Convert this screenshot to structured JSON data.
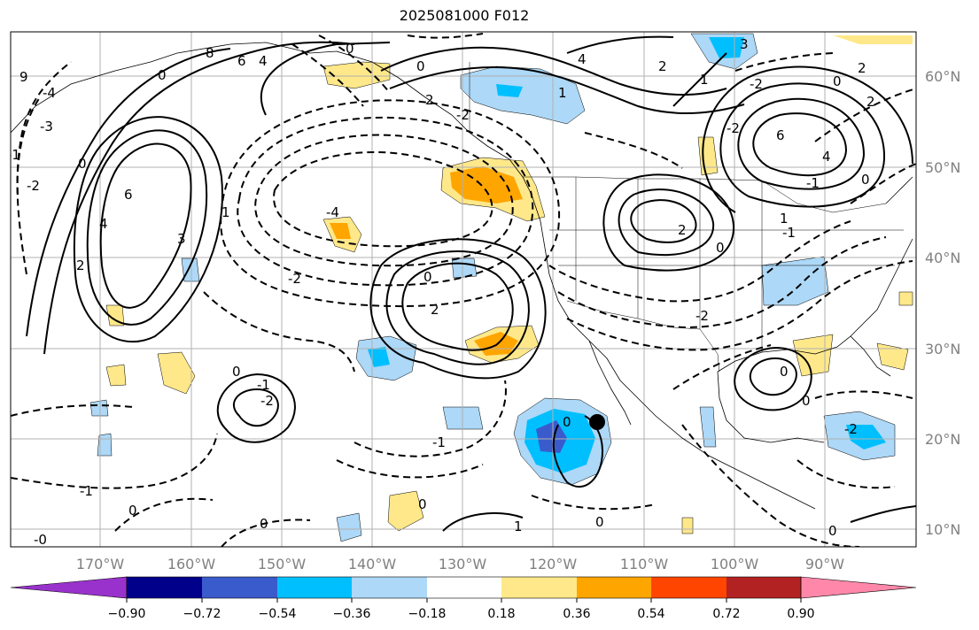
{
  "title": "2025081000 F012",
  "lat_labels": [
    "60°N",
    "50°N",
    "40°N",
    "30°N",
    "20°N",
    "10°N"
  ],
  "lon_labels": [
    "170°W",
    "160°W",
    "150°W",
    "140°W",
    "130°W",
    "120°W",
    "110°W",
    "100°W",
    "90°W"
  ],
  "colorbar": {
    "colors": [
      "#9932cc",
      "#00008b",
      "#3a5bcb",
      "#00bfff",
      "#add8f7",
      "#ffffff",
      "#ffe88a",
      "#ffa500",
      "#ff4500",
      "#b22222",
      "#ff88aa"
    ],
    "tick_labels": [
      "−0.90",
      "−0.72",
      "−0.54",
      "−0.36",
      "−0.18",
      "0.18",
      "0.36",
      "0.54",
      "0.72",
      "0.90"
    ]
  },
  "contour_labels": [
    "8",
    "6",
    "4",
    "2",
    "1",
    "0",
    "-1",
    "-2",
    "-3",
    "-4"
  ],
  "contour_label_items": [
    "9",
    "8",
    "6",
    "4",
    "-4",
    "-3",
    "-2",
    "-1",
    "0",
    "6",
    "4",
    "2",
    "3",
    "1",
    "0",
    "-2",
    "-4",
    "2",
    "-2",
    "0",
    "1",
    "2",
    "0",
    "-1",
    "-2",
    "-1",
    "0",
    "-1",
    "0",
    "-0",
    "0",
    "1",
    "0",
    "0",
    "0",
    "4",
    "2",
    "1",
    "2",
    "3",
    "-2",
    "0",
    "2",
    "6",
    "4",
    "-2",
    "2",
    "1",
    "-1",
    "0",
    "0",
    "-1",
    "0",
    "-2",
    "0",
    "0",
    "-2",
    "0"
  ]
}
